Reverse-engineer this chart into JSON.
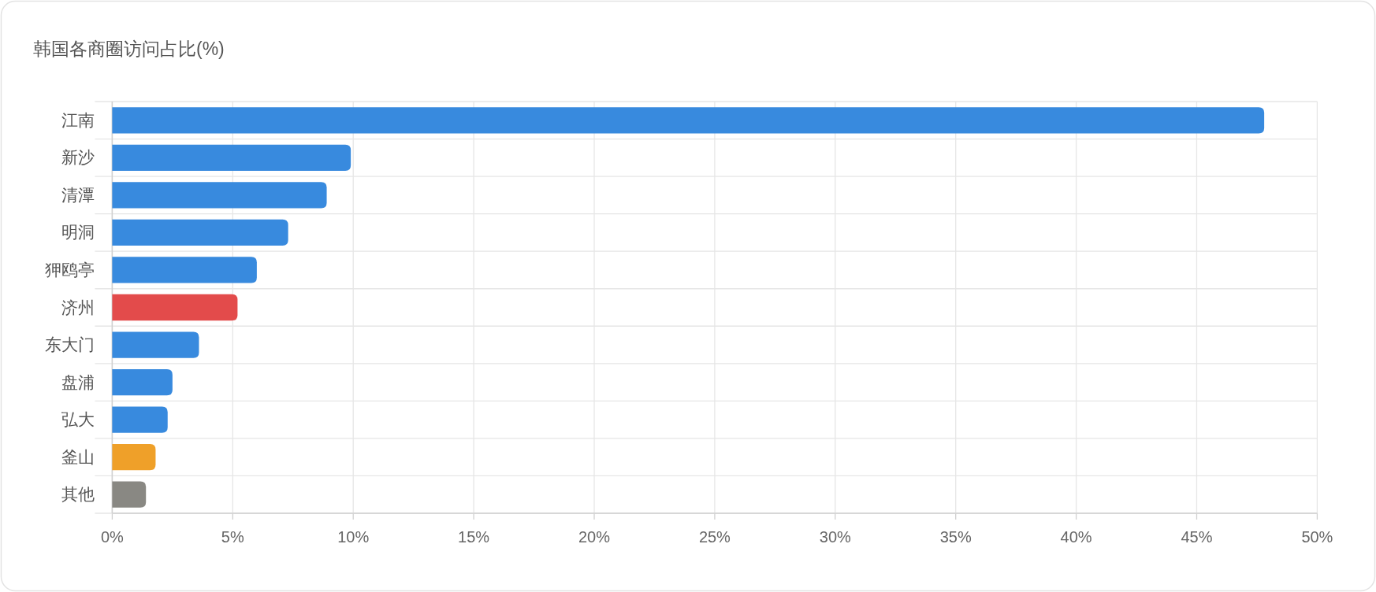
{
  "chart_data": {
    "type": "bar",
    "orientation": "horizontal",
    "title": "韩国各商圈访问占比(%)",
    "categories": [
      "江南",
      "新沙",
      "清潭",
      "明洞",
      "狎鸥亭",
      "济州",
      "东大门",
      "盘浦",
      "弘大",
      "釜山",
      "其他"
    ],
    "values": [
      47.8,
      9.9,
      8.9,
      7.3,
      6.0,
      5.2,
      3.6,
      2.5,
      2.3,
      1.8,
      1.4
    ],
    "colors": [
      "#388ade",
      "#388ade",
      "#388ade",
      "#388ade",
      "#388ade",
      "#e34b4b",
      "#388ade",
      "#388ade",
      "#388ade",
      "#efa029",
      "#898883"
    ],
    "xlim": [
      0,
      50
    ],
    "xticks": [
      {
        "value": 0,
        "label": "0%"
      },
      {
        "value": 5,
        "label": "5%"
      },
      {
        "value": 10,
        "label": "10%"
      },
      {
        "value": 15,
        "label": "15%"
      },
      {
        "value": 20,
        "label": "20%"
      },
      {
        "value": 25,
        "label": "25%"
      },
      {
        "value": 30,
        "label": "30%"
      },
      {
        "value": 35,
        "label": "35%"
      },
      {
        "value": 40,
        "label": "40%"
      },
      {
        "value": 45,
        "label": "45%"
      },
      {
        "value": 50,
        "label": "50%"
      }
    ],
    "grid": true
  }
}
